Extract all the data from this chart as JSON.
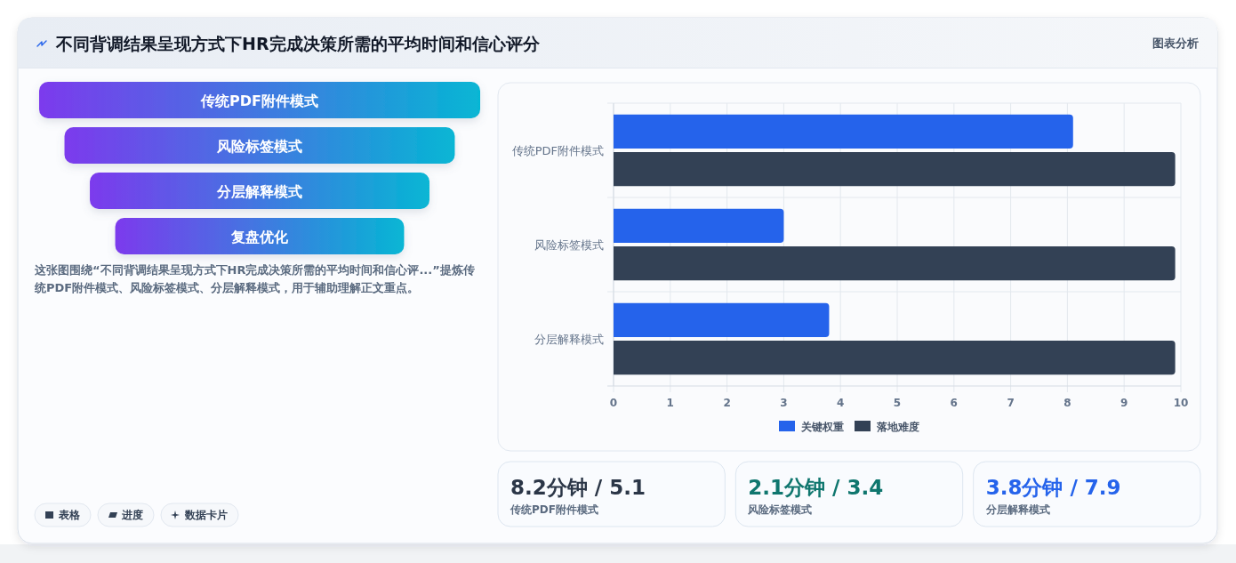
{
  "chart_data": [
    {
      "type": "other",
      "title": "不同背调结果呈现方式下HR完成决策所需的平均时间和信心评分",
      "categories": [
        "传统PDF附件模式",
        "风险标签模式",
        "分层解释模式",
        "复盘优化"
      ],
      "annotations": [
        "图表分析",
        "这张图围绕“不同背调结果呈现方式下HR完成决策所需的平均时间和信心评...”提炼传统PDF附件模式、风险标签模式、分层解释模式，用于辅助理解正文重点。",
        "表格",
        "进度",
        "数据卡片"
      ]
    },
    {
      "type": "bar",
      "orientation": "horizontal",
      "categories": [
        "传统PDF附件模式",
        "风险标签模式",
        "分层解释模式"
      ],
      "series": [
        {
          "name": "关键权重",
          "color": "#2563eb",
          "values": [
            8.1,
            3.0,
            3.8
          ]
        },
        {
          "name": "落地难度",
          "color": "#334155",
          "values": [
            9.9,
            9.9,
            9.9
          ]
        }
      ],
      "xlim": [
        0,
        10
      ],
      "xticks": [
        0,
        1,
        2,
        3,
        4,
        5,
        6,
        7,
        8,
        9,
        10
      ],
      "grid": true,
      "legend": "bottom"
    },
    {
      "type": "other",
      "annotations": [
        "8.2分钟 / 5.1",
        "传统PDF附件模式",
        "2.1分钟 / 3.4",
        "风险标签模式",
        "3.8分钟 / 7.9",
        "分层解释模式"
      ],
      "colors": [
        "#2b3647",
        "#0f766e",
        "#2563eb"
      ]
    }
  ]
}
